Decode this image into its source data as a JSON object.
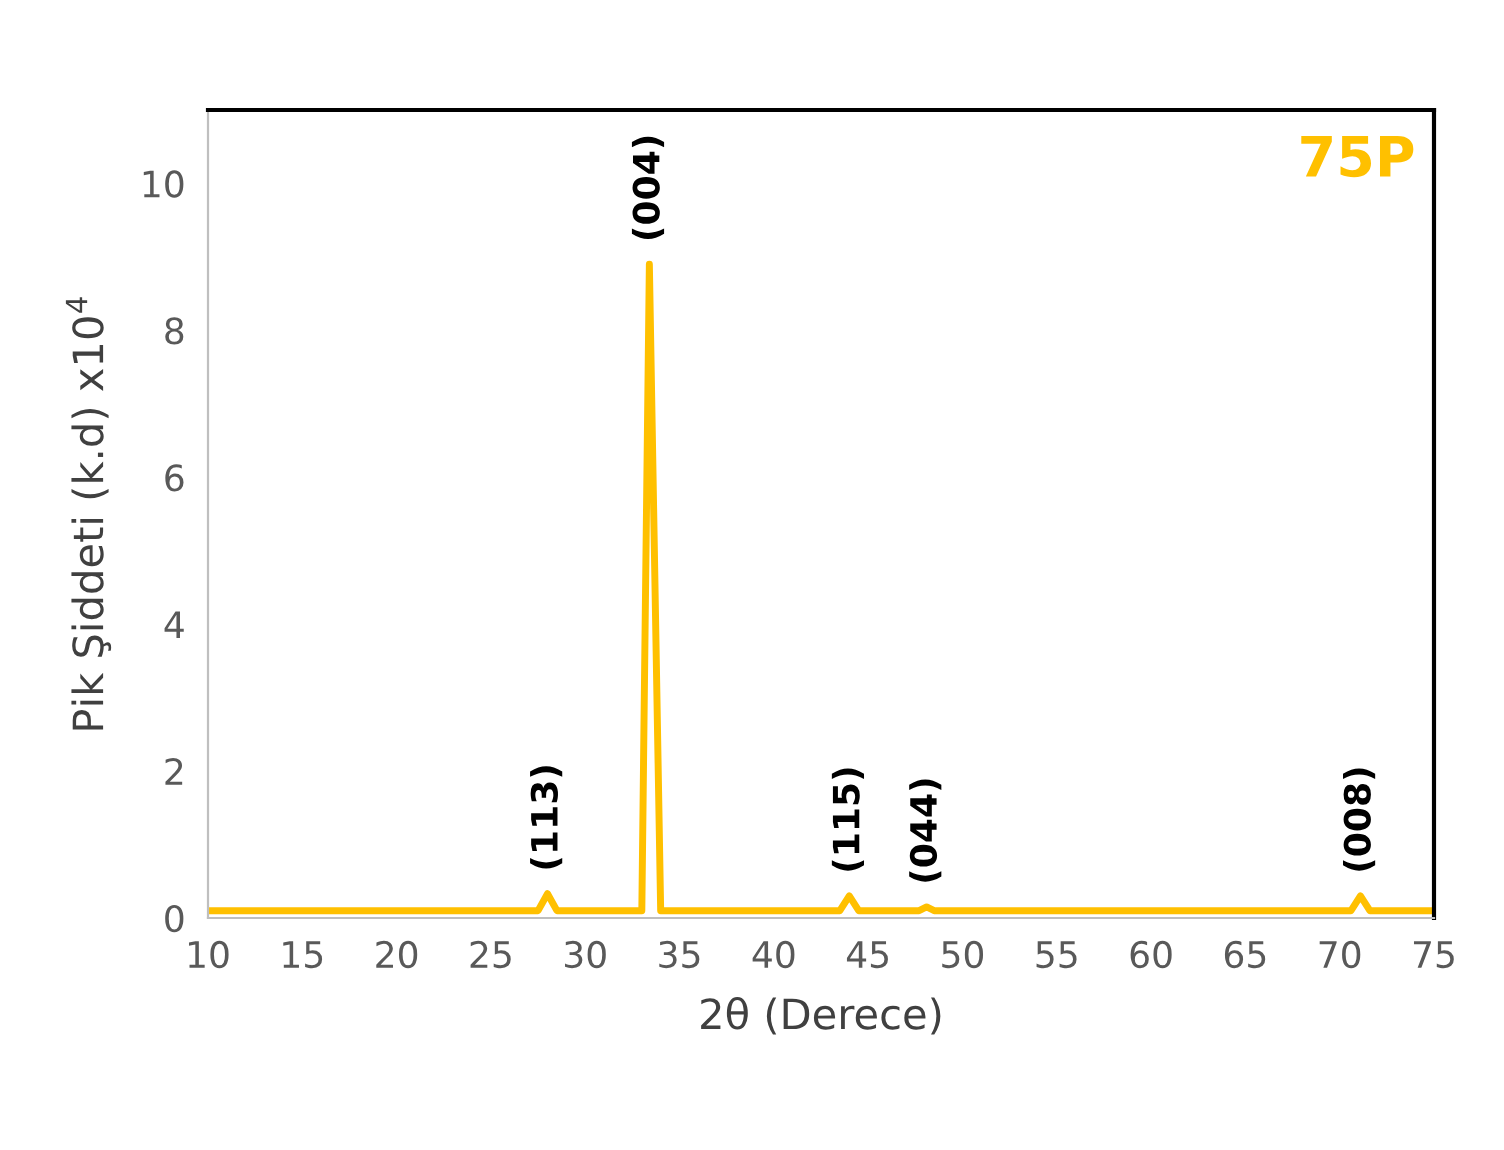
{
  "chart_data": {
    "type": "line",
    "xlabel": "2θ (Derece)",
    "ylabel": "Pik Şiddeti (k.d) x10$^{4}$",
    "series": [
      {
        "name": "75P",
        "color": "#ffc000",
        "x": [
          10,
          27.5,
          28.0,
          28.5,
          33.0,
          33.4,
          34.0,
          43.5,
          44.0,
          44.5,
          47.7,
          48.1,
          48.5,
          70.6,
          71.1,
          71.6,
          75
        ],
        "values": [
          0.1,
          0.1,
          0.33,
          0.1,
          0.1,
          8.9,
          0.1,
          0.1,
          0.3,
          0.1,
          0.1,
          0.15,
          0.1,
          0.1,
          0.3,
          0.1,
          0.1
        ]
      }
    ],
    "annotations": [
      {
        "text": "(113)",
        "x": 28.0,
        "y": 0.33
      },
      {
        "text": "(004)",
        "x": 33.4,
        "y": 8.9
      },
      {
        "text": "(115)",
        "x": 44.0,
        "y": 0.3
      },
      {
        "text": "(044)",
        "x": 48.1,
        "y": 0.15
      },
      {
        "text": "(008)",
        "x": 71.1,
        "y": 0.3
      }
    ],
    "xlim": [
      10,
      75
    ],
    "xticks": [
      10,
      15,
      20,
      25,
      30,
      35,
      40,
      45,
      50,
      55,
      60,
      65,
      70,
      75
    ],
    "ylim": [
      0,
      11
    ],
    "yticks": [
      0,
      2,
      4,
      6,
      8,
      10
    ],
    "grid": false,
    "marker": "none",
    "line_style": "solid"
  }
}
